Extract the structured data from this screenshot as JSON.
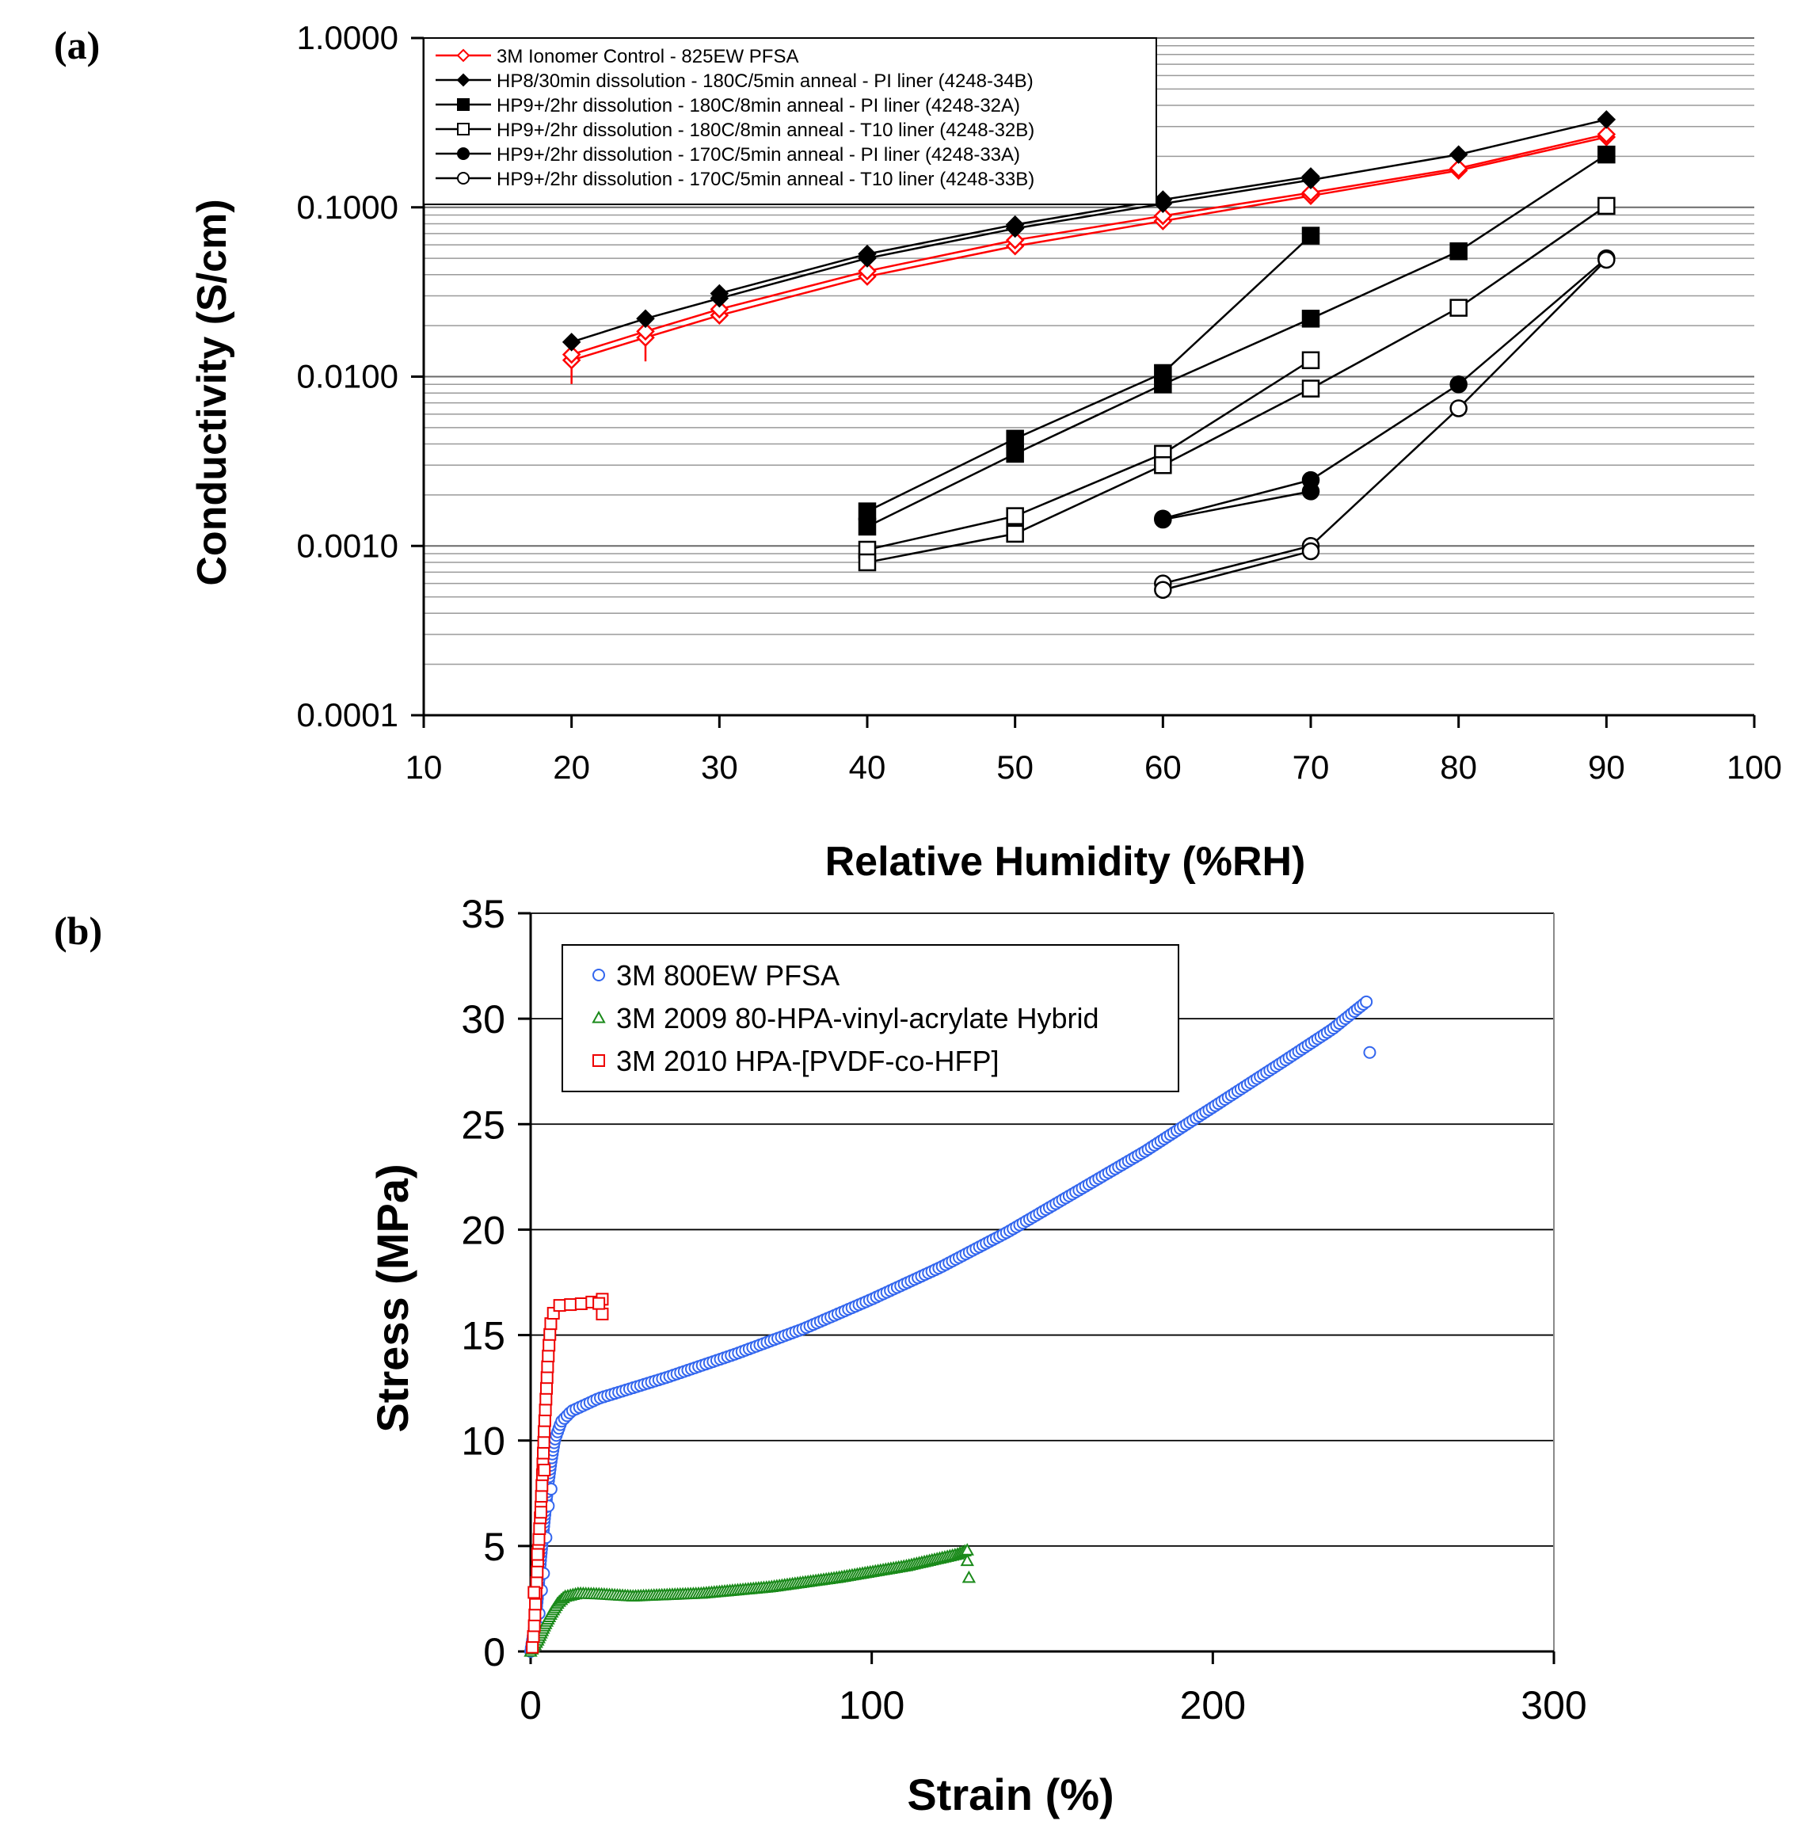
{
  "panel_labels": {
    "a": "(a)",
    "b": "(b)"
  },
  "chart_data": [
    {
      "id": "a",
      "type": "line",
      "yscale": "log",
      "title": "",
      "xlabel": "Relative Humidity (%RH)",
      "ylabel": "Conductivity (S/cm)",
      "xlim": [
        10,
        100
      ],
      "ylim": [
        0.0001,
        1.0
      ],
      "grid": true,
      "legend_position": "top-left",
      "x_ticks": [
        10,
        20,
        30,
        40,
        50,
        60,
        70,
        80,
        90,
        100
      ],
      "x_tick_labels": [
        "10",
        "20",
        "30",
        "40",
        "50",
        "60",
        "70",
        "80",
        "90",
        "100"
      ],
      "y_ticks": [
        0.0001,
        0.001,
        0.01,
        0.1,
        1.0
      ],
      "y_tick_labels": [
        "0.0001",
        "0.0010",
        "0.0100",
        "0.1000",
        "1.0000"
      ],
      "series": [
        {
          "name": "3M Ionomer Control - 825EW PFSA",
          "color": "#ff0000",
          "marker": "diamond-open",
          "error_bars": true,
          "lines": [
            [
              [
                20,
                0.0125
              ],
              [
                25,
                0.017
              ],
              [
                30,
                0.023
              ],
              [
                40,
                0.039
              ],
              [
                50,
                0.059
              ],
              [
                60,
                0.083
              ],
              [
                70,
                0.117
              ],
              [
                80,
                0.165
              ],
              [
                90,
                0.26
              ]
            ],
            [
              [
                20,
                0.0135
              ],
              [
                25,
                0.0185
              ],
              [
                30,
                0.025
              ],
              [
                40,
                0.042
              ],
              [
                50,
                0.064
              ],
              [
                60,
                0.089
              ],
              [
                70,
                0.122
              ],
              [
                80,
                0.17
              ],
              [
                90,
                0.27
              ]
            ]
          ]
        },
        {
          "name": "HP8/30min dissolution - 180C/5min anneal - PI liner (4248-34B)",
          "color": "#000000",
          "marker": "diamond-filled",
          "lines": [
            [
              [
                20,
                0.016
              ],
              [
                25,
                0.022
              ],
              [
                30,
                0.029
              ],
              [
                40,
                0.05
              ],
              [
                50,
                0.075
              ],
              [
                60,
                0.105
              ],
              [
                70,
                0.145
              ],
              [
                80,
                0.205
              ],
              [
                90,
                0.33
              ]
            ],
            [
              [
                30,
                0.031
              ],
              [
                40,
                0.053
              ],
              [
                50,
                0.079
              ],
              [
                60,
                0.111
              ],
              [
                70,
                0.152
              ]
            ]
          ]
        },
        {
          "name": "HP9+/2hr dissolution - 180C/8min anneal - PI liner (4248-32A)",
          "color": "#000000",
          "marker": "square-filled",
          "lines": [
            [
              [
                40,
                0.0016
              ],
              [
                50,
                0.0043
              ],
              [
                60,
                0.0105
              ],
              [
                70,
                0.068
              ]
            ],
            [
              [
                40,
                0.0013
              ],
              [
                50,
                0.0035
              ],
              [
                60,
                0.009
              ],
              [
                70,
                0.022
              ],
              [
                80,
                0.055
              ],
              [
                90,
                0.205
              ]
            ]
          ]
        },
        {
          "name": "HP9+/2hr dissolution - 180C/8min anneal - T10 liner (4248-32B)",
          "color": "#000000",
          "marker": "square-open",
          "lines": [
            [
              [
                40,
                0.00095
              ],
              [
                50,
                0.0015
              ],
              [
                60,
                0.0035
              ],
              [
                70,
                0.0125
              ]
            ],
            [
              [
                40,
                0.0008
              ],
              [
                50,
                0.00118
              ],
              [
                60,
                0.003
              ],
              [
                70,
                0.0085
              ],
              [
                80,
                0.0255
              ],
              [
                90,
                0.102
              ]
            ]
          ]
        },
        {
          "name": "HP9+/2hr dissolution - 170C/5min anneal - PI liner (4248-33A)",
          "color": "#000000",
          "marker": "circle-filled",
          "lines": [
            [
              [
                60,
                0.00145
              ],
              [
                70,
                0.00245
              ],
              [
                80,
                0.009
              ],
              [
                90,
                0.05
              ]
            ],
            [
              [
                60,
                0.00143
              ],
              [
                70,
                0.0021
              ]
            ]
          ]
        },
        {
          "name": "HP9+/2hr dissolution - 170C/5min anneal - T10 liner (4248-33B)",
          "color": "#000000",
          "marker": "circle-open",
          "lines": [
            [
              [
                60,
                0.0006
              ],
              [
                70,
                0.001
              ],
              [
                80,
                0.0065
              ],
              [
                90,
                0.049
              ]
            ],
            [
              [
                60,
                0.00055
              ],
              [
                70,
                0.00093
              ]
            ]
          ]
        }
      ]
    },
    {
      "id": "b",
      "type": "scatter",
      "title": "",
      "xlabel": "Strain (%)",
      "ylabel": "Stress (MPa)",
      "xlim": [
        0,
        300
      ],
      "ylim": [
        0,
        35
      ],
      "grid": true,
      "legend_position": "top-left",
      "x_ticks": [
        0,
        100,
        200,
        300
      ],
      "x_tick_labels": [
        "0",
        "100",
        "200",
        "300"
      ],
      "y_ticks": [
        0,
        5,
        10,
        15,
        20,
        25,
        30,
        35
      ],
      "y_tick_labels": [
        "0",
        "5",
        "10",
        "15",
        "20",
        "25",
        "30",
        "35"
      ],
      "series": [
        {
          "name": "3M 800EW PFSA",
          "color": "#3366ee",
          "marker": "circle-open",
          "curve": [
            [
              0,
              0
            ],
            [
              1,
              1
            ],
            [
              2,
              2.5
            ],
            [
              3,
              4.5
            ],
            [
              4,
              6.2
            ],
            [
              5,
              7.8
            ],
            [
              6,
              9.0
            ],
            [
              7,
              10.0
            ],
            [
              9,
              10.9
            ],
            [
              12,
              11.4
            ],
            [
              20,
              12.0
            ],
            [
              40,
              13.0
            ],
            [
              60,
              14.1
            ],
            [
              80,
              15.3
            ],
            [
              100,
              16.7
            ],
            [
              120,
              18.2
            ],
            [
              140,
              19.9
            ],
            [
              160,
              21.8
            ],
            [
              180,
              23.7
            ],
            [
              200,
              25.8
            ],
            [
              220,
              27.9
            ],
            [
              235,
              29.5
            ],
            [
              245,
              30.8
            ]
          ],
          "density": 300,
          "extra_points": [
            [
              2,
              1.2
            ],
            [
              2.5,
              1.8
            ],
            [
              3.2,
              2.9
            ],
            [
              3.8,
              3.7
            ],
            [
              4.5,
              5.4
            ],
            [
              5.2,
              6.9
            ],
            [
              6,
              7.7
            ],
            [
              246,
              28.4
            ]
          ]
        },
        {
          "name": "3M 2009 80-HPA-vinyl-acrylate Hybrid",
          "color": "#1a8a1a",
          "marker": "triangle-open",
          "curve": [
            [
              0,
              0
            ],
            [
              2,
              0.5
            ],
            [
              4,
              1.2
            ],
            [
              6,
              1.8
            ],
            [
              8,
              2.3
            ],
            [
              10,
              2.6
            ],
            [
              14,
              2.75
            ],
            [
              20,
              2.72
            ],
            [
              30,
              2.62
            ],
            [
              50,
              2.75
            ],
            [
              70,
              3.05
            ],
            [
              90,
              3.5
            ],
            [
              110,
              4.05
            ],
            [
              125,
              4.6
            ],
            [
              128,
              4.8
            ]
          ],
          "density": 180,
          "extra_points": [
            [
              128,
              4.3
            ],
            [
              128.5,
              3.5
            ]
          ]
        },
        {
          "name": "3M 2010 HPA-[PVDF-co-HFP]",
          "color": "#ee0000",
          "marker": "square-open",
          "curve": [
            [
              0.5,
              0.2
            ],
            [
              1,
              1.0
            ],
            [
              1.5,
              2.5
            ],
            [
              2,
              4.0
            ],
            [
              2.5,
              5.5
            ],
            [
              3,
              6.8
            ],
            [
              3.5,
              8.5
            ],
            [
              4,
              10.5
            ],
            [
              4.5,
              12.0
            ],
            [
              5,
              13.6
            ],
            [
              5.5,
              14.8
            ],
            [
              6,
              15.7
            ],
            [
              7,
              16.2
            ],
            [
              8,
              16.4
            ],
            [
              12,
              16.45
            ],
            [
              16,
              16.5
            ],
            [
              19,
              16.6
            ],
            [
              21,
              16.7
            ]
          ],
          "density": 36,
          "extra_points": [
            [
              1,
              2.8
            ],
            [
              2,
              4.6
            ],
            [
              3,
              6.6
            ],
            [
              4,
              8.6
            ],
            [
              21,
              16.0
            ],
            [
              20,
              16.5
            ]
          ]
        }
      ]
    }
  ]
}
